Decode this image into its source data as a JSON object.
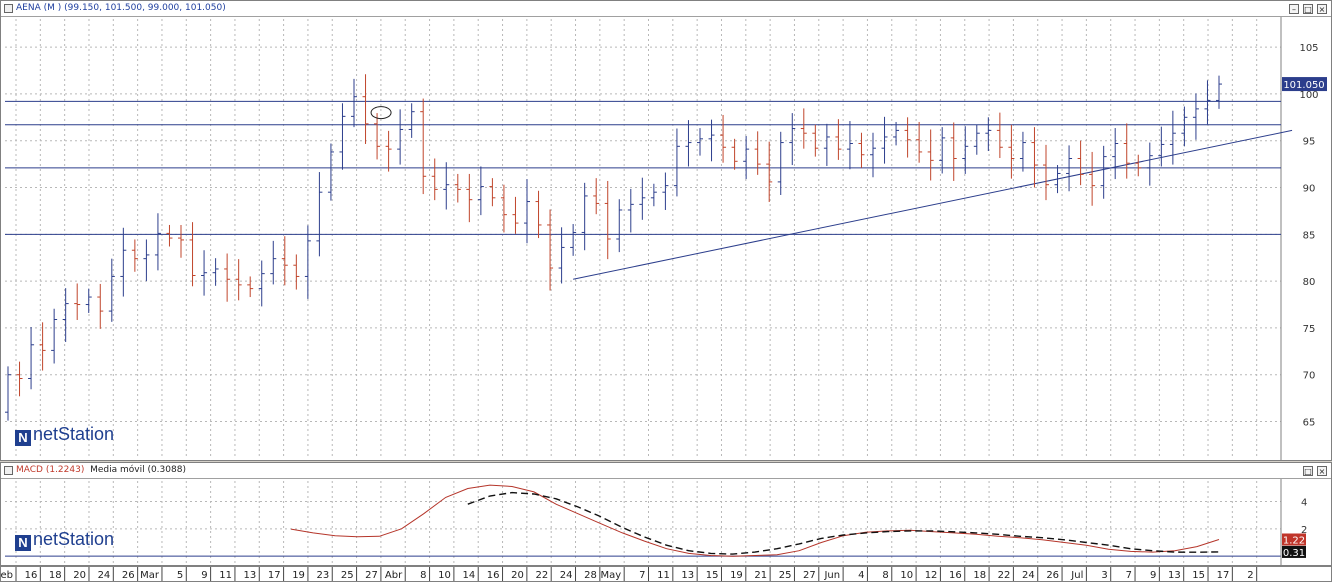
{
  "price_pane": {
    "title_name": "AENA (M )",
    "title_values": "(99.150, 101.500, 99.000, 101.050)",
    "last_label": "101.050",
    "logo": "netStation"
  },
  "macd_pane": {
    "title_macd": "MACD (1.2243)",
    "title_ma": "Media móvil (0.3088)",
    "last_macd_label": "1.22",
    "last_ma_label": "0.31",
    "logo": "netStation"
  },
  "chart_data": [
    {
      "type": "ohlc",
      "title": "AENA (M ) (99.150, 101.500, 99.000, 101.050)",
      "x_ticks": [
        "Feb",
        "16",
        "18",
        "20",
        "24",
        "26",
        "Mar",
        "5",
        "9",
        "11",
        "13",
        "17",
        "19",
        "23",
        "25",
        "27",
        "Abr",
        "8",
        "10",
        "14",
        "16",
        "20",
        "22",
        "24",
        "28",
        "May",
        "7",
        "11",
        "13",
        "15",
        "19",
        "21",
        "25",
        "27",
        "Jun",
        "4",
        "8",
        "10",
        "12",
        "16",
        "18",
        "22",
        "24",
        "26",
        "Jul",
        "3",
        "7",
        "9",
        "13",
        "15",
        "17",
        "2"
      ],
      "y_ticks": [
        65,
        70,
        75,
        80,
        85,
        90,
        95,
        100,
        105
      ],
      "ylim": [
        61,
        108
      ],
      "closes": [
        70,
        69.6,
        73.2,
        72.6,
        75.9,
        77.6,
        77.5,
        78.3,
        76.8,
        80.5,
        83.3,
        82.4,
        82.8,
        85.1,
        84.6,
        84.4,
        80.6,
        80.9,
        81.3,
        80.2,
        79.6,
        79.2,
        80.8,
        82.4,
        81.7,
        80.5,
        84.3,
        89.5,
        93.8,
        97.6,
        99.7,
        96.8,
        94.4,
        94.1,
        96.2,
        98.1,
        91.2,
        89.8,
        90.3,
        89.8,
        88.7,
        90.1,
        88.9,
        87.1,
        86.2,
        88.5,
        86.0,
        81.4,
        83.6,
        85.2,
        89.1,
        88.3,
        84.5,
        87.6,
        88.2,
        88.9,
        89.5,
        90.2,
        94.4,
        94.8,
        95.2,
        95.6,
        94.3,
        92.8,
        94.1,
        92.5,
        90.6,
        94.8,
        96.3,
        95.8,
        94.2,
        95.4,
        94.1,
        94.7,
        93.5,
        94.2,
        95.4,
        96.1,
        95.1,
        93.8,
        92.9,
        95.3,
        93.1,
        94.4,
        95.8,
        96.1,
        94.3,
        93.1,
        94.8,
        92.4,
        90.3,
        91.5,
        93.1,
        91.4,
        90.2,
        93.3,
        94.7,
        92.6,
        92.1,
        93.4,
        94.6,
        95.8,
        97.5,
        98.4,
        99.3,
        101.05
      ],
      "last_value": 101.05,
      "horizontal_lines": [
        99.2,
        96.7,
        92.1,
        85.0
      ],
      "trendline": {
        "from": {
          "bar": 49,
          "value": 80.2
        },
        "to": {
          "bar": 107,
          "value": 94.3
        }
      },
      "annotation": "ellipse marker near 98"
    },
    {
      "type": "line",
      "title": "MACD (1.2243) Media móvil (0.3088)",
      "y_ticks": [
        2,
        4
      ],
      "ylim": [
        -0.5,
        5.5
      ],
      "series": [
        {
          "name": "MACD (1.2243)",
          "values": [
            1.98,
            1.7,
            1.5,
            1.42,
            1.45,
            2.0,
            3.1,
            4.3,
            4.95,
            5.2,
            5.1,
            4.7,
            3.8,
            3.1,
            2.4,
            1.7,
            1.1,
            0.55,
            0.2,
            0.05,
            0.0,
            0.05,
            0.1,
            0.4,
            1.0,
            1.5,
            1.75,
            1.85,
            1.9,
            1.8,
            1.7,
            1.6,
            1.45,
            1.35,
            1.2,
            1.0,
            0.8,
            0.5,
            0.35,
            0.3,
            0.4,
            0.7,
            1.22
          ]
        },
        {
          "name": "Media móvil (0.3088)",
          "values": [
            null,
            null,
            null,
            null,
            null,
            null,
            null,
            null,
            3.8,
            4.4,
            4.65,
            4.55,
            4.2,
            3.6,
            2.9,
            2.1,
            1.4,
            0.8,
            0.4,
            0.2,
            0.15,
            0.3,
            0.55,
            0.9,
            1.3,
            1.55,
            1.7,
            1.8,
            1.85,
            1.85,
            1.78,
            1.7,
            1.6,
            1.45,
            1.35,
            1.2,
            1.0,
            0.8,
            0.55,
            0.4,
            0.3,
            0.29,
            0.31
          ]
        }
      ]
    }
  ],
  "colors": {
    "up": "#2c3e8c",
    "down": "#c0452b",
    "macd": "#b5352a",
    "signal": "#111111",
    "hline": "#2c3e8c",
    "last_price_bg": "#2c3e8c",
    "last_macd_bg": "#c0352a",
    "last_ma_bg": "#111111"
  }
}
